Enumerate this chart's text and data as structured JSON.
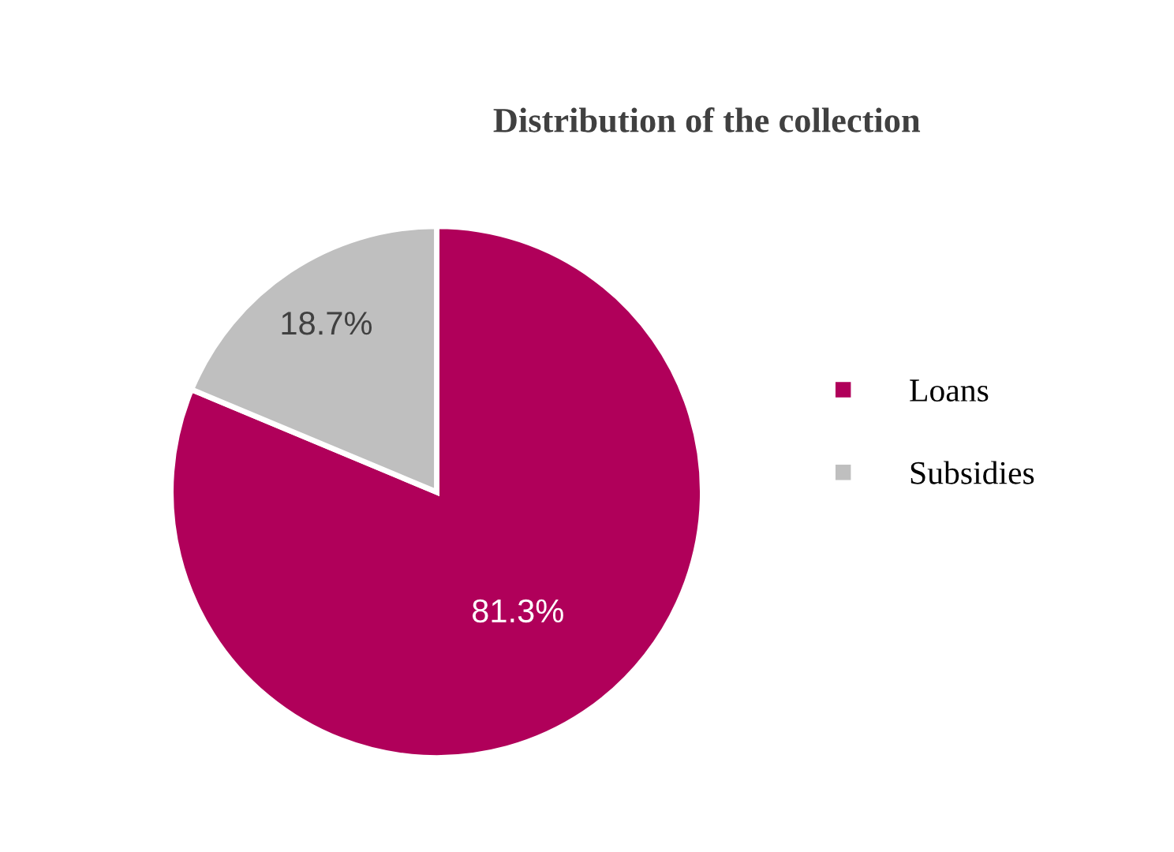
{
  "chart_data": {
    "type": "pie",
    "title": "Distribution of the collection",
    "categories": [
      "Loans",
      "Subsidies"
    ],
    "values": [
      81.3,
      18.7
    ],
    "colors": [
      "#b0005a",
      "#bfbfbf"
    ],
    "value_labels": [
      "81.3%",
      "18.7%"
    ],
    "legend": "right"
  }
}
